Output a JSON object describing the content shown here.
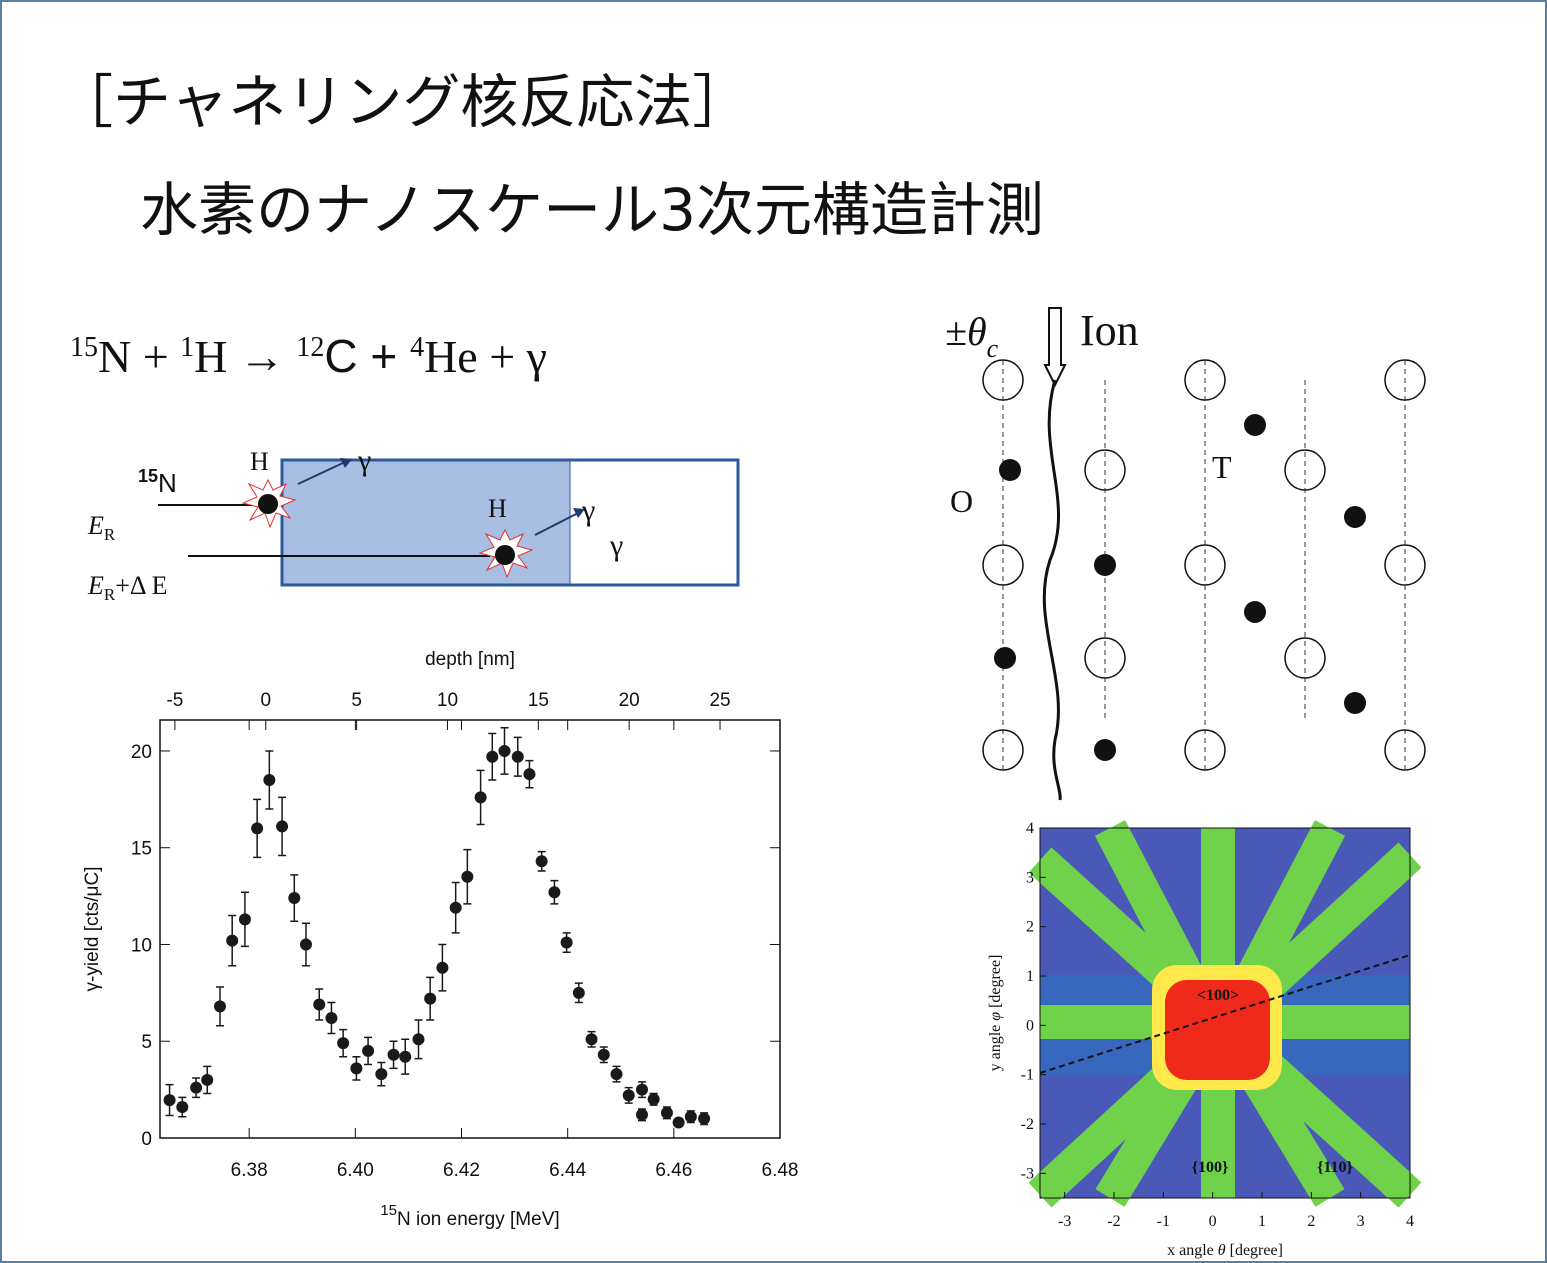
{
  "header": {
    "title": "［チャネリング核反応法］",
    "subtitle": "水素のナノスケール3次元構造計測"
  },
  "equation": [
    "15",
    "N + ",
    "1",
    "H → ",
    "12",
    "C  + ",
    "4",
    "He + γ"
  ],
  "schematic": {
    "beam_sup": "15",
    "beam": "N",
    "h1": "H",
    "gamma1": "γ",
    "h2": "H",
    "gamma2": "γ",
    "gamma3": "γ",
    "e1": "E",
    "e1_sub": "R",
    "e2": "E",
    "e2_sub": "R",
    "e2_rest": "+Δ E"
  },
  "lattice": {
    "angle": "±θ",
    "angle_sub": "c",
    "ion": "Ion",
    "site_o": "O",
    "site_t": "T"
  },
  "heatmap": {
    "xlabel_pre": "x angle ",
    "xlabel_sym": "θ",
    "xlabel_post": " [degree]",
    "ylabel_pre": "y angle ",
    "ylabel_sym": "φ",
    "ylabel_post": " [degree]",
    "center": "<100>",
    "plane1": "{100}",
    "plane2": "{110}",
    "xlim": [
      -3.5,
      4
    ],
    "ylim": [
      -3.5,
      4
    ],
    "xticks": [
      -3,
      -2,
      -1,
      0,
      1,
      2,
      3,
      4
    ],
    "yticks": [
      -3,
      -2,
      -1,
      0,
      1,
      2,
      3,
      4
    ]
  },
  "chart_data": {
    "type": "scatter",
    "xlabel_sup": "15",
    "xlabel": "N ion energy [MeV]",
    "ylabel": "γ-yield [cts/μC]",
    "x2label": "depth [nm]",
    "xlim": [
      6.3632,
      6.48
    ],
    "ylim": [
      0,
      21.6
    ],
    "x2lim": [
      -5.82,
      28.3
    ],
    "xticks": [
      6.38,
      {
        "value": 6.4,
        "label": "6.40"
      },
      6.42,
      6.44,
      6.46,
      6.48
    ],
    "yticks": [
      0,
      5,
      10,
      15,
      20
    ],
    "x2ticks": [
      -5,
      0,
      5,
      10,
      15,
      20,
      25
    ],
    "color": "#1a1a1a",
    "x": [
      6.365,
      6.3674,
      6.37,
      6.3721,
      6.3745,
      6.3768,
      6.3792,
      6.3815,
      6.3838,
      6.3862,
      6.3885,
      6.3907,
      6.3932,
      6.3955,
      6.3977,
      6.4002,
      6.4024,
      6.4049,
      6.4072,
      6.4094,
      6.4119,
      6.4141,
      6.4164,
      6.4189,
      6.4211,
      6.4236,
      6.4258,
      6.4281,
      6.4306,
      6.4328,
      6.4351,
      6.4375,
      6.4398,
      6.4421,
      6.4445,
      6.4468,
      6.4492,
      6.4515,
      6.454,
      6.454,
      6.4562,
      6.4587,
      6.4609,
      6.4632,
      6.4657
    ],
    "values": [
      1.96,
      1.6,
      2.6,
      3.0,
      6.8,
      10.2,
      11.3,
      16.0,
      18.5,
      16.1,
      12.4,
      10.0,
      6.9,
      6.2,
      4.9,
      3.6,
      4.5,
      3.3,
      4.3,
      4.2,
      5.1,
      7.2,
      8.8,
      11.9,
      13.5,
      17.6,
      19.7,
      20.0,
      19.7,
      18.8,
      14.3,
      12.7,
      10.1,
      7.5,
      5.1,
      4.3,
      3.3,
      2.2,
      2.5,
      1.2,
      2.0,
      1.3,
      0.8,
      1.1,
      1.0
    ],
    "errors": [
      0.8,
      0.5,
      0.5,
      0.7,
      1.0,
      1.3,
      1.4,
      1.5,
      1.5,
      1.5,
      1.2,
      1.1,
      0.8,
      0.8,
      0.7,
      0.6,
      0.7,
      0.6,
      0.7,
      0.9,
      1.0,
      1.1,
      1.2,
      1.3,
      1.4,
      1.4,
      1.2,
      1.2,
      1.0,
      0.7,
      0.5,
      0.6,
      0.5,
      0.5,
      0.4,
      0.4,
      0.4,
      0.4,
      0.4,
      0.3,
      0.3,
      0.3,
      0.2,
      0.3,
      0.3
    ]
  }
}
